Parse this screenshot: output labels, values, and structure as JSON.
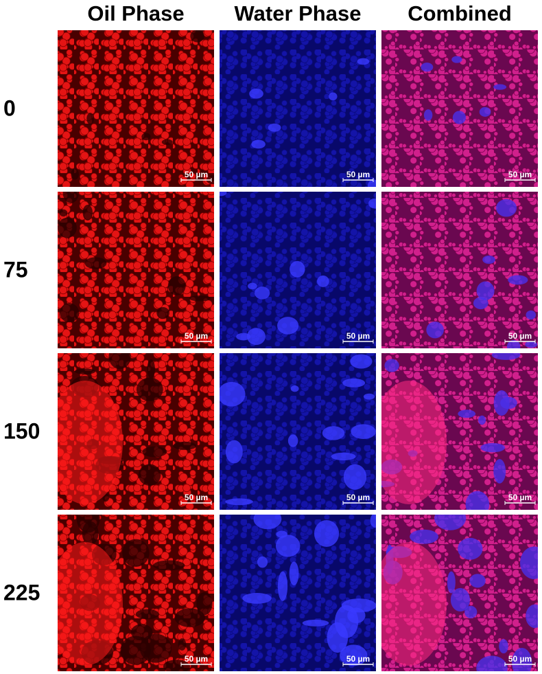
{
  "columns": [
    "Oil Phase",
    "Water Phase",
    "Combined"
  ],
  "rows": [
    {
      "label": "0",
      "scale_bars": [
        "50 µm",
        "50 µm",
        "50 µm"
      ]
    },
    {
      "label": "75",
      "scale_bars": [
        "50 µm",
        "50 µm",
        "50 µm"
      ]
    },
    {
      "label": "150",
      "scale_bars": [
        "50 µm",
        "50 µm",
        "50 µm"
      ]
    },
    {
      "label": "225",
      "scale_bars": [
        "50 µm",
        "50 µm",
        "50 µm"
      ]
    }
  ]
}
